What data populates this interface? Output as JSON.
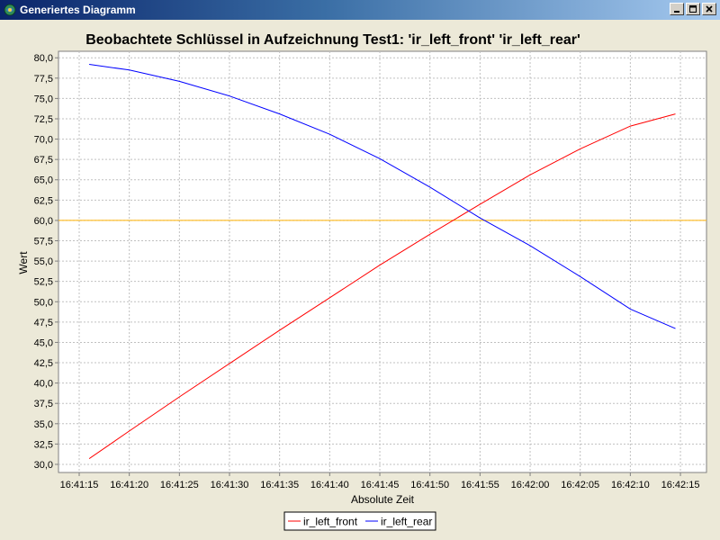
{
  "window": {
    "title": "Generiertes Diagramm",
    "icon": "app-icon",
    "controls": [
      "minimize-icon",
      "maximize-icon",
      "close-icon"
    ]
  },
  "chart_data": {
    "type": "line",
    "title": "Beobachtete Schlüssel in Aufzeichnung Test1: 'ir_left_front' 'ir_left_rear'",
    "xlabel": "Absolute Zeit",
    "ylabel": "Wert",
    "x_ticks": [
      "16:41:15",
      "16:41:20",
      "16:41:25",
      "16:41:30",
      "16:41:35",
      "16:41:40",
      "16:41:45",
      "16:41:50",
      "16:41:55",
      "16:42:00",
      "16:42:05",
      "16:42:10",
      "16:42:15"
    ],
    "x_tick_seconds": [
      0,
      5,
      10,
      15,
      20,
      25,
      30,
      35,
      40,
      45,
      50,
      55,
      60
    ],
    "y_ticks": [
      "30,0",
      "32,5",
      "35,0",
      "37,5",
      "40,0",
      "42,5",
      "45,0",
      "47,5",
      "50,0",
      "52,5",
      "55,0",
      "57,5",
      "60,0",
      "62,5",
      "65,0",
      "67,5",
      "70,0",
      "72,5",
      "75,0",
      "77,5",
      "80,0"
    ],
    "ylim": [
      29.0,
      80.8
    ],
    "grid": true,
    "legend_position": "bottom-center",
    "series": [
      {
        "name": "ir_left_front",
        "color": "#FF0000",
        "x_seconds": [
          1,
          5,
          10,
          15,
          20,
          25,
          30,
          35,
          40,
          45,
          50,
          55,
          59.5
        ],
        "values": [
          30.7,
          34.1,
          38.3,
          42.4,
          46.5,
          50.5,
          54.5,
          58.3,
          62.0,
          65.6,
          68.8,
          71.6,
          73.1
        ]
      },
      {
        "name": "ir_left_rear",
        "color": "#0000FF",
        "x_seconds": [
          1,
          5,
          10,
          15,
          20,
          25,
          30,
          35,
          40,
          45,
          50,
          55,
          59.5
        ],
        "values": [
          79.2,
          78.5,
          77.1,
          75.3,
          73.1,
          70.6,
          67.6,
          64.1,
          60.3,
          56.9,
          53.1,
          49.1,
          46.7
        ]
      }
    ],
    "reference_line": {
      "value": 60.0,
      "color": "#FFB000"
    }
  }
}
